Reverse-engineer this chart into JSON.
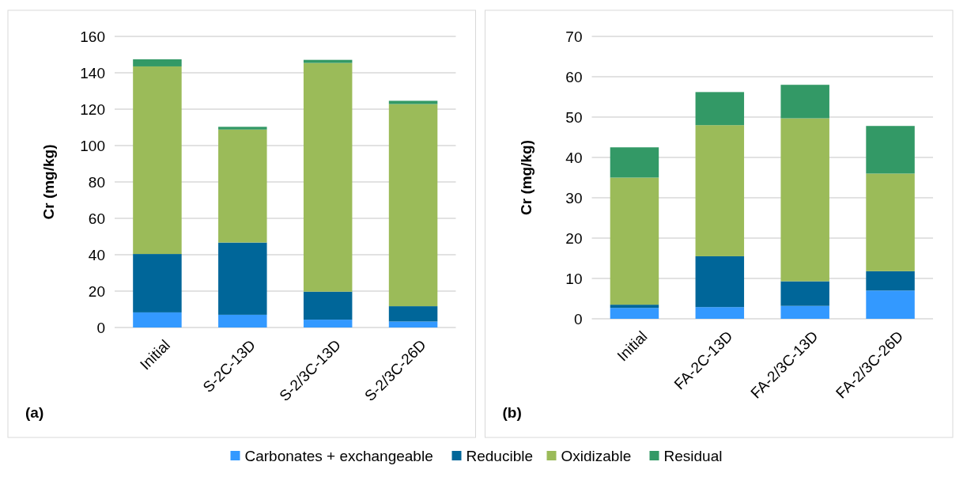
{
  "chart_data": [
    {
      "type": "bar",
      "stacked": true,
      "ylabel": "Cr (mg/kg)",
      "categories": [
        "Initial",
        "S-2C-13D",
        "S-2/3C-13D",
        "S-2/3C-26D"
      ],
      "series": [
        {
          "name": "Carbonates + exchangeable",
          "color": "#3399ff",
          "values": [
            8.3,
            7.0,
            4.3,
            3.3
          ]
        },
        {
          "name": "Reducible",
          "color": "#006699",
          "values": [
            32.1,
            39.7,
            15.4,
            8.4
          ]
        },
        {
          "name": "Oxidizable",
          "color": "#9bbb59",
          "values": [
            103.1,
            62.1,
            125.7,
            111.1
          ]
        },
        {
          "name": "Residual",
          "color": "#339966",
          "values": [
            3.9,
            1.5,
            1.7,
            1.8
          ]
        }
      ],
      "ylim": [
        0,
        160
      ],
      "yticks": [
        0,
        20,
        40,
        60,
        80,
        100,
        120,
        140,
        160
      ],
      "grid": "y",
      "legend": "bottom",
      "annotations": [
        "(a)"
      ]
    },
    {
      "type": "bar",
      "stacked": true,
      "ylabel": "Cr (mg/kg)",
      "categories": [
        "Initial",
        "FA-2C-13D",
        "FA-2/3C-13D",
        "FA-2/3C-26D"
      ],
      "series": [
        {
          "color": "#3399ff",
          "values": [
            2.7,
            2.9,
            3.2,
            7.0
          ]
        },
        {
          "color": "#006699",
          "values": [
            0.8,
            12.6,
            6.1,
            4.8
          ]
        },
        {
          "color": "#9bbb59",
          "values": [
            31.5,
            32.5,
            40.4,
            24.2
          ]
        },
        {
          "color": "#339966",
          "values": [
            7.5,
            8.2,
            8.3,
            11.8
          ]
        }
      ],
      "ylim": [
        0,
        70
      ],
      "yticks": [
        0,
        10,
        20,
        30,
        40,
        50,
        60,
        70
      ],
      "grid": "y",
      "annotations": [
        "(b)"
      ]
    }
  ]
}
